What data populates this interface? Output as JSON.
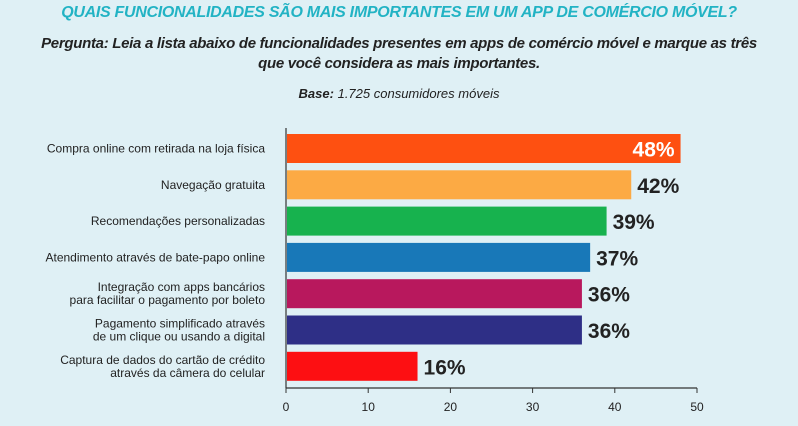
{
  "header": {
    "title": "QUAIS FUNCIONALIDADES SÃO MAIS IMPORTANTES EM UM APP DE COMÉRCIO MÓVEL?",
    "question": "Pergunta: Leia a lista abaixo de funcionalidades presentes em apps de comércio móvel e marque as três que você considera as mais importantes.",
    "base_label": "Base:",
    "base_value": "1.725 consumidores móveis"
  },
  "chart_data": {
    "type": "bar",
    "orientation": "horizontal",
    "categories": [
      [
        "Compra online com retirada na loja física"
      ],
      [
        "Navegação gratuita"
      ],
      [
        "Recomendações personalizadas"
      ],
      [
        "Atendimento através de bate-papo online"
      ],
      [
        "Integração com apps bancários",
        "para facilitar o pagamento por boleto"
      ],
      [
        "Pagamento simplificado através",
        "de um clique ou usando a digital"
      ],
      [
        "Captura de dados do cartão de crédito",
        "através da câmera do celular"
      ]
    ],
    "values": [
      48,
      42,
      39,
      37,
      36,
      36,
      16
    ],
    "value_labels": [
      "48%",
      "42%",
      "39%",
      "37%",
      "36%",
      "36%",
      "16%"
    ],
    "colors": [
      "#fe5011",
      "#fcaa44",
      "#17b24e",
      "#1878b8",
      "#b8185d",
      "#2e2f86",
      "#fd0f12"
    ],
    "value_label_colors": [
      "#ffffff",
      "#222222",
      "#222222",
      "#222222",
      "#222222",
      "#222222",
      "#222222"
    ],
    "value_label_inside": [
      true,
      false,
      false,
      false,
      false,
      false,
      false
    ],
    "xlim": [
      0,
      50
    ],
    "xticks": [
      0,
      10,
      20,
      30,
      40,
      50
    ],
    "xlabel": "",
    "ylabel": ""
  }
}
